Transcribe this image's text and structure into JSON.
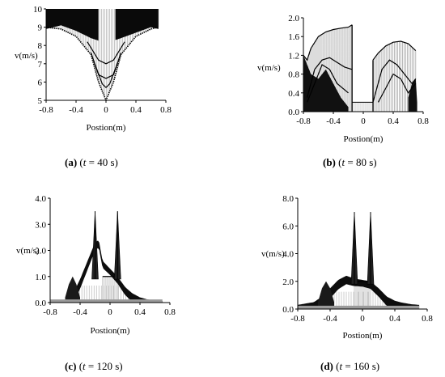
{
  "chart_data": [
    {
      "id": "a",
      "type": "area",
      "caption": {
        "panel": "(a)",
        "pre": " (",
        "var": "t",
        "post": " = 40 s)"
      },
      "xlabel": "Postion(m)",
      "ylabel": "v(m/s)",
      "xlim": [
        -0.8,
        0.8
      ],
      "ylim": [
        5,
        10
      ],
      "xticks": [
        "-0.8",
        "-0.4",
        "0",
        "0.4",
        "0.8"
      ],
      "yticks": [
        "5",
        "6",
        "7",
        "8",
        "9",
        "10"
      ],
      "x_tick_values": [
        -0.8,
        -0.4,
        0,
        0.4,
        0.8
      ],
      "y_tick_values": [
        5,
        6,
        7,
        8,
        9,
        10
      ],
      "x_data_range": [
        -0.8,
        0.7
      ],
      "gap": [
        -0.1,
        0.1
      ],
      "envelope_upper": {
        "x": [
          -0.8,
          -0.6,
          -0.4,
          -0.2,
          -0.05,
          0.05,
          0.2,
          0.4,
          0.6,
          0.7
        ],
        "y": [
          9.5,
          9.7,
          9.4,
          9.0,
          8.8,
          8.8,
          9.0,
          9.3,
          9.6,
          9.5
        ]
      },
      "envelope_lower": {
        "x": [
          -0.8,
          -0.6,
          -0.4,
          -0.2,
          -0.1,
          0,
          0.1,
          0.2,
          0.4,
          0.6,
          0.7
        ],
        "y": [
          9.0,
          8.9,
          8.5,
          7.5,
          6.0,
          5.0,
          6.0,
          7.5,
          8.5,
          8.9,
          9.0
        ]
      },
      "curves": [
        {
          "x": [
            -0.25,
            -0.1,
            0,
            0.1,
            0.25
          ],
          "y": [
            8.2,
            7.2,
            7.0,
            7.2,
            8.2
          ]
        },
        {
          "x": [
            -0.2,
            -0.1,
            0,
            0.1,
            0.2
          ],
          "y": [
            7.6,
            6.4,
            6.2,
            6.4,
            7.6
          ]
        },
        {
          "x": [
            -0.15,
            -0.05,
            0,
            0.05,
            0.15
          ],
          "y": [
            7.0,
            5.9,
            5.7,
            5.9,
            7.0
          ]
        }
      ]
    },
    {
      "id": "b",
      "type": "area",
      "caption": {
        "panel": "(b)",
        "pre": " (",
        "var": "t",
        "post": " = 80 s)"
      },
      "xlabel": "Postion(m)",
      "ylabel": "v(m/s)",
      "xlim": [
        -0.8,
        0.8
      ],
      "ylim": [
        0,
        2.0
      ],
      "xticks": [
        "-0.8",
        "-0.4",
        "0",
        "0.4",
        "0.8"
      ],
      "yticks": [
        "0.0",
        "0.4",
        "0.8",
        "1.2",
        "1.6",
        "2.0"
      ],
      "x_tick_values": [
        -0.8,
        -0.4,
        0,
        0.4,
        0.8
      ],
      "y_tick_values": [
        0,
        0.4,
        0.8,
        1.2,
        1.6,
        2.0
      ],
      "x_data_range": [
        -0.8,
        0.7
      ],
      "gap": [
        -0.15,
        0.13
      ],
      "gap_level": 0.2,
      "envelope_left": {
        "x": [
          -0.8,
          -0.75,
          -0.7,
          -0.6,
          -0.5,
          -0.4,
          -0.3,
          -0.2,
          -0.15
        ],
        "y": [
          1.2,
          1.1,
          1.35,
          1.6,
          1.7,
          1.75,
          1.78,
          1.8,
          1.85
        ]
      },
      "envelope_right": {
        "x": [
          0.13,
          0.2,
          0.3,
          0.4,
          0.5,
          0.6,
          0.7
        ],
        "y": [
          1.1,
          1.25,
          1.4,
          1.48,
          1.5,
          1.45,
          1.3
        ]
      },
      "curves": [
        {
          "x": [
            -0.75,
            -0.65,
            -0.55,
            -0.45,
            -0.35,
            -0.25,
            -0.15
          ],
          "y": [
            0.3,
            0.9,
            1.1,
            1.15,
            1.05,
            0.95,
            0.9
          ]
        },
        {
          "x": [
            -0.75,
            -0.65,
            -0.55,
            -0.45,
            -0.35,
            -0.2
          ],
          "y": [
            0.2,
            0.6,
            1.0,
            0.9,
            0.6,
            0.4
          ]
        },
        {
          "x": [
            0.13,
            0.25,
            0.35,
            0.45,
            0.55,
            0.65,
            0.7
          ],
          "y": [
            0.2,
            0.9,
            1.1,
            1.0,
            0.8,
            0.6,
            0.7
          ]
        },
        {
          "x": [
            0.2,
            0.3,
            0.4,
            0.5,
            0.6,
            0.7
          ],
          "y": [
            0.2,
            0.5,
            0.8,
            0.7,
            0.4,
            0.6
          ]
        }
      ]
    },
    {
      "id": "c",
      "type": "area",
      "caption": {
        "panel": "(c)",
        "pre": " (",
        "var": "t",
        "post": " = 120 s)"
      },
      "xlabel": "Postion(m)",
      "ylabel": "v(m/s)",
      "xlim": [
        -0.8,
        0.8
      ],
      "ylim": [
        0,
        4.0
      ],
      "xticks": [
        "-0.8",
        "-0.4",
        "0",
        "0.4",
        "0.8"
      ],
      "yticks": [
        "0.0",
        "1.0",
        "2.0",
        "3.0",
        "4.0"
      ],
      "x_tick_values": [
        -0.8,
        -0.4,
        0,
        0.4,
        0.8
      ],
      "y_tick_values": [
        0,
        1,
        2,
        3,
        4
      ],
      "x_data_range": [
        -0.8,
        0.7
      ],
      "flat_level": 1.0,
      "flat_range": [
        -0.1,
        0.1
      ],
      "envelope": {
        "x": [
          -0.8,
          -0.6,
          -0.5,
          -0.4,
          -0.3,
          -0.2,
          -0.15,
          -0.1,
          0.1,
          0.2,
          0.3,
          0.4,
          0.5,
          0.6,
          0.7
        ],
        "y": [
          0.05,
          0.1,
          0.3,
          0.9,
          1.6,
          2.3,
          2.4,
          1.6,
          1.0,
          0.6,
          0.35,
          0.2,
          0.12,
          0.08,
          0.05
        ]
      },
      "bump": {
        "x": [
          -0.6,
          -0.55,
          -0.5,
          -0.45,
          -0.4
        ],
        "y": [
          0.2,
          0.7,
          1.0,
          0.7,
          0.2
        ]
      },
      "spikes": [
        {
          "x": -0.2,
          "y": 3.5
        },
        {
          "x": 0.1,
          "y": 3.5
        }
      ]
    },
    {
      "id": "d",
      "type": "area",
      "caption": {
        "panel": "(d)",
        "pre": " (",
        "var": "t",
        "post": " = 160 s)"
      },
      "xlabel": "Postion(m)",
      "ylabel": "v(m/s)",
      "xlim": [
        -0.8,
        0.8
      ],
      "ylim": [
        0,
        8.0
      ],
      "xticks": [
        "-0.8",
        "-0.4",
        "0",
        "0.4",
        "0.8"
      ],
      "yticks": [
        "0.0",
        "2.0",
        "4.0",
        "6.0",
        "8.0"
      ],
      "x_tick_values": [
        -0.8,
        -0.4,
        0,
        0.4,
        0.8
      ],
      "y_tick_values": [
        0,
        2,
        4,
        6,
        8
      ],
      "x_data_range": [
        -0.8,
        0.7
      ],
      "flat_level": 2.0,
      "flat_range": [
        -0.1,
        0.1
      ],
      "envelope": {
        "x": [
          -0.8,
          -0.6,
          -0.5,
          -0.4,
          -0.3,
          -0.2,
          -0.1,
          0.1,
          0.2,
          0.3,
          0.4,
          0.5,
          0.6,
          0.7
        ],
        "y": [
          0.3,
          0.5,
          0.9,
          1.5,
          2.1,
          2.4,
          2.2,
          2.0,
          1.5,
          0.9,
          0.6,
          0.45,
          0.35,
          0.3
        ]
      },
      "bump": {
        "x": [
          -0.55,
          -0.5,
          -0.45,
          -0.4,
          -0.35
        ],
        "y": [
          0.5,
          1.5,
          2.0,
          1.5,
          0.5
        ]
      },
      "spikes": [
        {
          "x": -0.1,
          "y": 7.0
        },
        {
          "x": 0.1,
          "y": 7.0
        }
      ]
    }
  ]
}
